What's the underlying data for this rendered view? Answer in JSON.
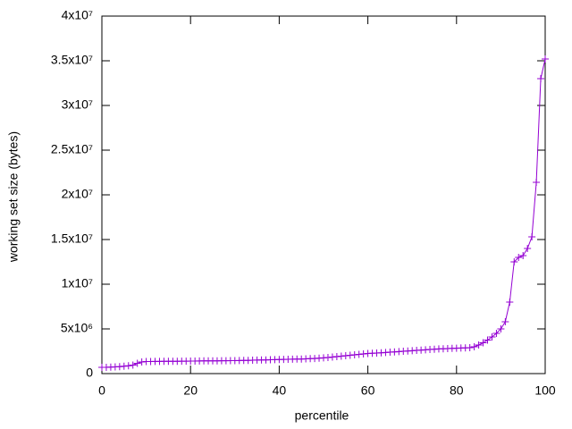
{
  "chart_data": {
    "type": "line",
    "xlabel": "percentile",
    "ylabel": "working set size (bytes)",
    "x": [
      0,
      1,
      2,
      3,
      4,
      5,
      6,
      7,
      8,
      9,
      10,
      11,
      12,
      13,
      14,
      15,
      16,
      17,
      18,
      19,
      20,
      21,
      22,
      23,
      24,
      25,
      26,
      27,
      28,
      29,
      30,
      31,
      32,
      33,
      34,
      35,
      36,
      37,
      38,
      39,
      40,
      41,
      42,
      43,
      44,
      45,
      46,
      47,
      48,
      49,
      50,
      51,
      52,
      53,
      54,
      55,
      56,
      57,
      58,
      59,
      60,
      61,
      62,
      63,
      64,
      65,
      66,
      67,
      68,
      69,
      70,
      71,
      72,
      73,
      74,
      75,
      76,
      77,
      78,
      79,
      80,
      81,
      82,
      83,
      84,
      85,
      86,
      87,
      88,
      89,
      90,
      91,
      92,
      93,
      94,
      95,
      96,
      97,
      98,
      99,
      100
    ],
    "series": [
      {
        "color": "#9400d3",
        "marker": "+",
        "values": [
          700000,
          700000,
          720000,
          750000,
          780000,
          820000,
          870000,
          950000,
          1150000,
          1300000,
          1350000,
          1350000,
          1360000,
          1360000,
          1370000,
          1370000,
          1380000,
          1380000,
          1390000,
          1390000,
          1400000,
          1400000,
          1410000,
          1420000,
          1420000,
          1430000,
          1430000,
          1440000,
          1440000,
          1450000,
          1450000,
          1460000,
          1470000,
          1480000,
          1500000,
          1510000,
          1520000,
          1530000,
          1550000,
          1560000,
          1580000,
          1590000,
          1600000,
          1610000,
          1620000,
          1630000,
          1650000,
          1670000,
          1690000,
          1720000,
          1760000,
          1800000,
          1850000,
          1900000,
          1950000,
          2000000,
          2050000,
          2100000,
          2150000,
          2200000,
          2250000,
          2280000,
          2300000,
          2330000,
          2360000,
          2400000,
          2430000,
          2460000,
          2500000,
          2530000,
          2560000,
          2600000,
          2630000,
          2660000,
          2700000,
          2730000,
          2760000,
          2780000,
          2800000,
          2820000,
          2840000,
          2860000,
          2880000,
          2900000,
          3000000,
          3200000,
          3450000,
          3750000,
          4100000,
          4500000,
          5000000,
          5800000,
          8000000,
          12500000,
          13000000,
          13200000,
          14000000,
          15300000,
          21400000,
          33000000,
          35200000
        ]
      }
    ],
    "xlim": [
      0,
      100
    ],
    "xticks": [
      0,
      20,
      40,
      60,
      80,
      100
    ],
    "ylim": [
      0,
      40000000
    ],
    "yticks": [
      0,
      {
        "value": 5000000,
        "label": "5x10⁶"
      },
      {
        "value": 10000000,
        "label": "1x10⁷"
      },
      {
        "value": 15000000,
        "label": "1.5x10⁷"
      },
      {
        "value": 20000000,
        "label": "2x10⁷"
      },
      {
        "value": 25000000,
        "label": "2.5x10⁷"
      },
      {
        "value": 30000000,
        "label": "3x10⁷"
      },
      {
        "value": 35000000,
        "label": "3.5x10⁷"
      },
      {
        "value": 40000000,
        "label": "4x10⁷"
      }
    ],
    "grid": false
  }
}
